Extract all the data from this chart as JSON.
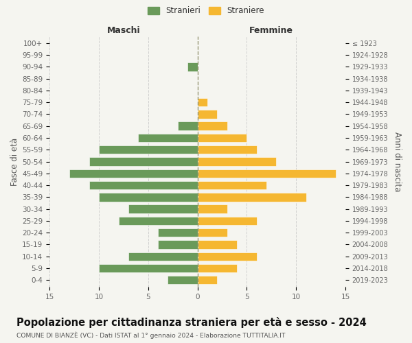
{
  "age_groups": [
    "100+",
    "95-99",
    "90-94",
    "85-89",
    "80-84",
    "75-79",
    "70-74",
    "65-69",
    "60-64",
    "55-59",
    "50-54",
    "45-49",
    "40-44",
    "35-39",
    "30-34",
    "25-29",
    "20-24",
    "15-19",
    "10-14",
    "5-9",
    "0-4"
  ],
  "birth_years": [
    "≤ 1923",
    "1924-1928",
    "1929-1933",
    "1934-1938",
    "1939-1943",
    "1944-1948",
    "1949-1953",
    "1954-1958",
    "1959-1963",
    "1964-1968",
    "1969-1973",
    "1974-1978",
    "1979-1983",
    "1984-1988",
    "1989-1993",
    "1994-1998",
    "1999-2003",
    "2004-2008",
    "2009-2013",
    "2014-2018",
    "2019-2023"
  ],
  "maschi": [
    0,
    0,
    1,
    0,
    0,
    0,
    0,
    2,
    6,
    10,
    11,
    13,
    11,
    10,
    7,
    8,
    4,
    4,
    7,
    10,
    3
  ],
  "femmine": [
    0,
    0,
    0,
    0,
    0,
    1,
    2,
    3,
    5,
    6,
    8,
    14,
    7,
    11,
    3,
    6,
    3,
    4,
    6,
    4,
    2
  ],
  "maschi_color": "#6a9a5a",
  "femmine_color": "#f5b731",
  "background_color": "#f5f5f0",
  "grid_color": "#cccccc",
  "title": "Popolazione per cittadinanza straniera per età e sesso - 2024",
  "subtitle": "COMUNE DI BIANZÈ (VC) - Dati ISTAT al 1° gennaio 2024 - Elaborazione TUTTITALIA.IT",
  "ylabel_left": "Fasce di età",
  "ylabel_right": "Anni di nascita",
  "maschi_label": "Stranieri",
  "femmine_label": "Straniere",
  "maschi_header": "Maschi",
  "femmine_header": "Femmine",
  "xlim": 15,
  "tick_fontsize": 7.5,
  "label_fontsize": 8.5,
  "title_fontsize": 10.5
}
